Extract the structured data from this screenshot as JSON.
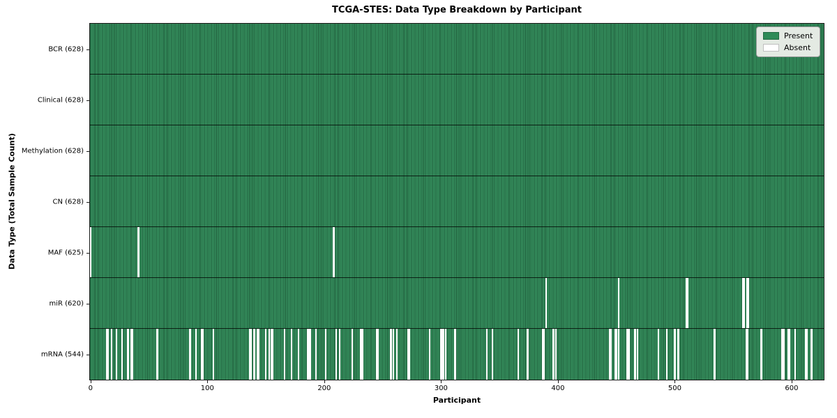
{
  "figure": {
    "title": "TCGA-STES: Data Type Breakdown by Participant"
  },
  "chart_data": {
    "type": "heatmap",
    "title": "TCGA-STES: Data Type Breakdown by Participant",
    "xlabel": "Participant",
    "ylabel": "Data Type (Total Sample Count)",
    "x_range": [
      -0.5,
      627.5
    ],
    "x_ticks": [
      0,
      100,
      200,
      300,
      400,
      500,
      600
    ],
    "total_participants": 628,
    "grid": false,
    "legend_position": "upper right",
    "colors": {
      "present": "#2e8b57",
      "absent": "#ffffff",
      "bar_edge": "#1f5c3c",
      "legend_background": "#e4eae3"
    },
    "legend": [
      {
        "label": "Present",
        "color": "#2e8b57"
      },
      {
        "label": "Absent",
        "color": "#ffffff"
      }
    ],
    "rows": [
      {
        "label": "BCR",
        "present_count": 628,
        "axis_label": "BCR (628)",
        "absent_participants": []
      },
      {
        "label": "Clinical",
        "present_count": 628,
        "axis_label": "Clinical (628)",
        "absent_participants": []
      },
      {
        "label": "Methylation",
        "present_count": 628,
        "axis_label": "Methylation (628)",
        "absent_participants": []
      },
      {
        "label": "CN",
        "present_count": 628,
        "axis_label": "CN (628)",
        "absent_participants": []
      },
      {
        "label": "MAF",
        "present_count": 625,
        "axis_label": "MAF (625)",
        "absent_participants": [
          0,
          41,
          208
        ]
      },
      {
        "label": "miR",
        "present_count": 620,
        "axis_label": "miR (620)",
        "absent_participants": [
          390,
          452,
          510,
          511,
          558,
          559,
          562,
          563
        ]
      },
      {
        "label": "mRNA",
        "present_count": 544,
        "axis_label": "mRNA (544)",
        "absent_participants": [
          14,
          15,
          18,
          22,
          27,
          32,
          35,
          36,
          57,
          85,
          90,
          95,
          96,
          105,
          136,
          137,
          140,
          143,
          144,
          150,
          153,
          155,
          156,
          166,
          172,
          178,
          186,
          187,
          188,
          193,
          201,
          210,
          213,
          224,
          231,
          232,
          233,
          245,
          246,
          257,
          259,
          262,
          272,
          273,
          290,
          300,
          301,
          302,
          304,
          312,
          339,
          344,
          366,
          374,
          387,
          388,
          396,
          398,
          444,
          445,
          449,
          450,
          452,
          459,
          460,
          461,
          466,
          468,
          486,
          493,
          500,
          503,
          534,
          561,
          562,
          574,
          592,
          593,
          597,
          598,
          603,
          612,
          613,
          617
        ]
      }
    ]
  }
}
